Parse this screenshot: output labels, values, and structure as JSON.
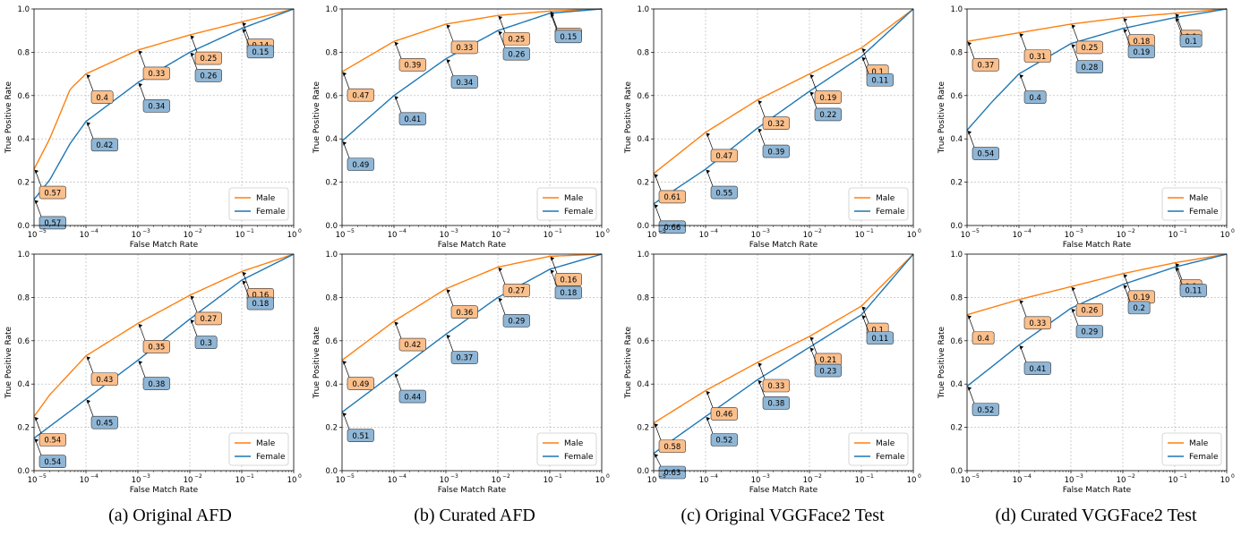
{
  "colors": {
    "male": "#ff7f0e",
    "female": "#1f77b4",
    "male_box": "#fbbf8c",
    "female_box": "#8fb6d6"
  },
  "captions": [
    "(a) Original AFD",
    "(b) Curated AFD",
    "(c) Original VGGFace2 Test",
    "(d) Curated VGGFace2 Test"
  ],
  "chart_data": [
    {
      "type": "line",
      "xlabel": "False Match Rate",
      "ylabel": "True Positive Rate",
      "xscale": "log",
      "xlim": [
        1e-05,
        1
      ],
      "ylim": [
        0,
        1
      ],
      "grid": true,
      "legend": "bottom-right",
      "series": [
        {
          "name": "Male",
          "x": [
            1e-05,
            2e-05,
            5e-05,
            0.0001,
            0.001,
            0.01,
            0.1,
            1
          ],
          "y": [
            0.26,
            0.4,
            0.63,
            0.7,
            0.81,
            0.88,
            0.94,
            1.0
          ],
          "annotations": [
            {
              "x": 1e-05,
              "text": "0.57"
            },
            {
              "x": 0.0001,
              "text": "0.4"
            },
            {
              "x": 0.001,
              "text": "0.33"
            },
            {
              "x": 0.01,
              "text": "0.25"
            },
            {
              "x": 0.1,
              "text": "0.14"
            }
          ]
        },
        {
          "name": "Female",
          "x": [
            1e-05,
            2e-05,
            5e-05,
            0.0001,
            0.001,
            0.01,
            0.1,
            1
          ],
          "y": [
            0.12,
            0.21,
            0.38,
            0.48,
            0.66,
            0.8,
            0.91,
            1.0
          ],
          "annotations": [
            {
              "x": 1e-05,
              "text": "0.57"
            },
            {
              "x": 0.0001,
              "text": "0.42"
            },
            {
              "x": 0.001,
              "text": "0.34"
            },
            {
              "x": 0.01,
              "text": "0.26"
            },
            {
              "x": 0.1,
              "text": "0.15"
            }
          ]
        }
      ]
    },
    {
      "type": "line",
      "xlabel": "False Match Rate",
      "ylabel": "True Positive Rate",
      "xscale": "log",
      "xlim": [
        1e-05,
        1
      ],
      "ylim": [
        0,
        1
      ],
      "grid": true,
      "legend": "bottom-right",
      "series": [
        {
          "name": "Male",
          "x": [
            1e-05,
            0.0001,
            0.001,
            0.01,
            0.1,
            1
          ],
          "y": [
            0.71,
            0.85,
            0.93,
            0.97,
            0.99,
            1.0
          ],
          "annotations": [
            {
              "x": 1e-05,
              "text": "0.47"
            },
            {
              "x": 0.0001,
              "text": "0.39"
            },
            {
              "x": 0.001,
              "text": "0.33"
            },
            {
              "x": 0.01,
              "text": "0.25"
            },
            {
              "x": 0.1,
              "text": "0.14"
            }
          ]
        },
        {
          "name": "Female",
          "x": [
            1e-05,
            0.0001,
            0.001,
            0.01,
            0.1,
            1
          ],
          "y": [
            0.39,
            0.6,
            0.77,
            0.9,
            0.98,
            1.0
          ],
          "annotations": [
            {
              "x": 1e-05,
              "text": "0.49"
            },
            {
              "x": 0.0001,
              "text": "0.41"
            },
            {
              "x": 0.001,
              "text": "0.34"
            },
            {
              "x": 0.01,
              "text": "0.26"
            },
            {
              "x": 0.1,
              "text": "0.15"
            }
          ]
        }
      ]
    },
    {
      "type": "line",
      "xlabel": "False Match Rate",
      "ylabel": "True Positive Rate",
      "xscale": "log",
      "xlim": [
        1e-05,
        1
      ],
      "ylim": [
        0,
        1
      ],
      "grid": true,
      "legend": "bottom-right",
      "series": [
        {
          "name": "Male",
          "x": [
            1e-05,
            0.0001,
            0.001,
            0.01,
            0.1,
            1
          ],
          "y": [
            0.24,
            0.43,
            0.58,
            0.7,
            0.82,
            1.0
          ],
          "annotations": [
            {
              "x": 1e-05,
              "text": "0.61"
            },
            {
              "x": 0.0001,
              "text": "0.47"
            },
            {
              "x": 0.001,
              "text": "0.32"
            },
            {
              "x": 0.01,
              "text": "0.19"
            },
            {
              "x": 0.1,
              "text": "0.1"
            }
          ]
        },
        {
          "name": "Female",
          "x": [
            1e-05,
            0.0001,
            0.001,
            0.01,
            0.1,
            1
          ],
          "y": [
            0.1,
            0.26,
            0.45,
            0.62,
            0.78,
            1.0
          ],
          "annotations": [
            {
              "x": 1e-05,
              "text": "0.66"
            },
            {
              "x": 0.0001,
              "text": "0.55"
            },
            {
              "x": 0.001,
              "text": "0.39"
            },
            {
              "x": 0.01,
              "text": "0.22"
            },
            {
              "x": 0.1,
              "text": "0.11"
            }
          ]
        }
      ]
    },
    {
      "type": "line",
      "xlabel": "False Match Rate",
      "ylabel": "True Positive Rate",
      "xscale": "log",
      "xlim": [
        1e-05,
        1
      ],
      "ylim": [
        0,
        1
      ],
      "grid": true,
      "legend": "bottom-right",
      "series": [
        {
          "name": "Male",
          "x": [
            1e-05,
            0.0001,
            0.001,
            0.01,
            0.1,
            1
          ],
          "y": [
            0.85,
            0.89,
            0.93,
            0.96,
            0.98,
            1.0
          ],
          "annotations": [
            {
              "x": 1e-05,
              "text": "0.37"
            },
            {
              "x": 0.0001,
              "text": "0.31"
            },
            {
              "x": 0.001,
              "text": "0.25"
            },
            {
              "x": 0.01,
              "text": "0.18"
            },
            {
              "x": 0.1,
              "text": "0.1"
            }
          ]
        },
        {
          "name": "Female",
          "x": [
            1e-05,
            3e-05,
            0.0001,
            0.001,
            0.01,
            0.1,
            1
          ],
          "y": [
            0.44,
            0.57,
            0.7,
            0.84,
            0.91,
            0.96,
            1.0
          ],
          "annotations": [
            {
              "x": 1e-05,
              "text": "0.54"
            },
            {
              "x": 0.0001,
              "text": "0.4"
            },
            {
              "x": 0.001,
              "text": "0.28"
            },
            {
              "x": 0.01,
              "text": "0.19"
            },
            {
              "x": 0.1,
              "text": "0.1"
            }
          ]
        }
      ]
    },
    {
      "type": "line",
      "xlabel": "False Match Rate",
      "ylabel": "True Positive Rate",
      "xscale": "log",
      "xlim": [
        1e-05,
        1
      ],
      "ylim": [
        0,
        1
      ],
      "grid": true,
      "legend": "bottom-right",
      "series": [
        {
          "name": "Male",
          "x": [
            1e-05,
            2e-05,
            0.0001,
            0.001,
            0.01,
            0.1,
            1
          ],
          "y": [
            0.25,
            0.35,
            0.53,
            0.68,
            0.81,
            0.92,
            1.0
          ],
          "annotations": [
            {
              "x": 1e-05,
              "text": "0.54"
            },
            {
              "x": 0.0001,
              "text": "0.43"
            },
            {
              "x": 0.001,
              "text": "0.35"
            },
            {
              "x": 0.01,
              "text": "0.27"
            },
            {
              "x": 0.1,
              "text": "0.16"
            }
          ]
        },
        {
          "name": "Female",
          "x": [
            1e-05,
            0.0001,
            0.001,
            0.01,
            0.1,
            1
          ],
          "y": [
            0.15,
            0.33,
            0.51,
            0.7,
            0.88,
            1.0
          ],
          "annotations": [
            {
              "x": 1e-05,
              "text": "0.54"
            },
            {
              "x": 0.0001,
              "text": "0.45"
            },
            {
              "x": 0.001,
              "text": "0.38"
            },
            {
              "x": 0.01,
              "text": "0.3"
            },
            {
              "x": 0.1,
              "text": "0.18"
            }
          ]
        }
      ]
    },
    {
      "type": "line",
      "xlabel": "False Match Rate",
      "ylabel": "True Positive Rate",
      "xscale": "log",
      "xlim": [
        1e-05,
        1
      ],
      "ylim": [
        0,
        1
      ],
      "grid": true,
      "legend": "bottom-right",
      "series": [
        {
          "name": "Male",
          "x": [
            1e-05,
            0.0001,
            0.001,
            0.01,
            0.1,
            1
          ],
          "y": [
            0.51,
            0.69,
            0.84,
            0.94,
            0.99,
            1.0
          ],
          "annotations": [
            {
              "x": 1e-05,
              "text": "0.49"
            },
            {
              "x": 0.0001,
              "text": "0.42"
            },
            {
              "x": 0.001,
              "text": "0.36"
            },
            {
              "x": 0.01,
              "text": "0.27"
            },
            {
              "x": 0.1,
              "text": "0.16"
            }
          ]
        },
        {
          "name": "Female",
          "x": [
            1e-05,
            0.0001,
            0.001,
            0.01,
            0.1,
            1
          ],
          "y": [
            0.27,
            0.45,
            0.63,
            0.8,
            0.93,
            1.0
          ],
          "annotations": [
            {
              "x": 1e-05,
              "text": "0.51"
            },
            {
              "x": 0.0001,
              "text": "0.44"
            },
            {
              "x": 0.001,
              "text": "0.37"
            },
            {
              "x": 0.01,
              "text": "0.29"
            },
            {
              "x": 0.1,
              "text": "0.18"
            }
          ]
        }
      ]
    },
    {
      "type": "line",
      "xlabel": "False Match Rate",
      "ylabel": "True Positive Rate",
      "xscale": "log",
      "xlim": [
        1e-05,
        1
      ],
      "ylim": [
        0,
        1
      ],
      "grid": true,
      "legend": "bottom-right",
      "series": [
        {
          "name": "Male",
          "x": [
            1e-05,
            0.0001,
            0.001,
            0.01,
            0.1,
            1
          ],
          "y": [
            0.22,
            0.37,
            0.5,
            0.62,
            0.76,
            1.0
          ],
          "annotations": [
            {
              "x": 1e-05,
              "text": "0.58"
            },
            {
              "x": 0.0001,
              "text": "0.46"
            },
            {
              "x": 0.001,
              "text": "0.33"
            },
            {
              "x": 0.01,
              "text": "0.21"
            },
            {
              "x": 0.1,
              "text": "0.1"
            }
          ]
        },
        {
          "name": "Female",
          "x": [
            1e-05,
            0.0001,
            0.001,
            0.01,
            0.1,
            1
          ],
          "y": [
            0.08,
            0.25,
            0.42,
            0.57,
            0.72,
            1.0
          ],
          "annotations": [
            {
              "x": 1e-05,
              "text": "0.63"
            },
            {
              "x": 0.0001,
              "text": "0.52"
            },
            {
              "x": 0.001,
              "text": "0.38"
            },
            {
              "x": 0.01,
              "text": "0.23"
            },
            {
              "x": 0.1,
              "text": "0.11"
            }
          ]
        }
      ]
    },
    {
      "type": "line",
      "xlabel": "False Match Rate",
      "ylabel": "True Positive Rate",
      "xscale": "log",
      "xlim": [
        1e-05,
        1
      ],
      "ylim": [
        0,
        1
      ],
      "grid": true,
      "legend": "bottom-right",
      "series": [
        {
          "name": "Male",
          "x": [
            1e-05,
            0.0001,
            0.001,
            0.01,
            0.1,
            1
          ],
          "y": [
            0.72,
            0.79,
            0.85,
            0.91,
            0.96,
            1.0
          ],
          "annotations": [
            {
              "x": 1e-05,
              "text": "0.4"
            },
            {
              "x": 0.0001,
              "text": "0.33"
            },
            {
              "x": 0.001,
              "text": "0.26"
            },
            {
              "x": 0.01,
              "text": "0.19"
            },
            {
              "x": 0.1,
              "text": "0.1"
            }
          ]
        },
        {
          "name": "Female",
          "x": [
            1e-05,
            3e-05,
            0.0001,
            0.001,
            0.01,
            0.1,
            1
          ],
          "y": [
            0.39,
            0.48,
            0.58,
            0.75,
            0.86,
            0.94,
            1.0
          ],
          "annotations": [
            {
              "x": 1e-05,
              "text": "0.52"
            },
            {
              "x": 0.0001,
              "text": "0.41"
            },
            {
              "x": 0.001,
              "text": "0.29"
            },
            {
              "x": 0.01,
              "text": "0.2"
            },
            {
              "x": 0.1,
              "text": "0.11"
            }
          ]
        }
      ]
    }
  ]
}
